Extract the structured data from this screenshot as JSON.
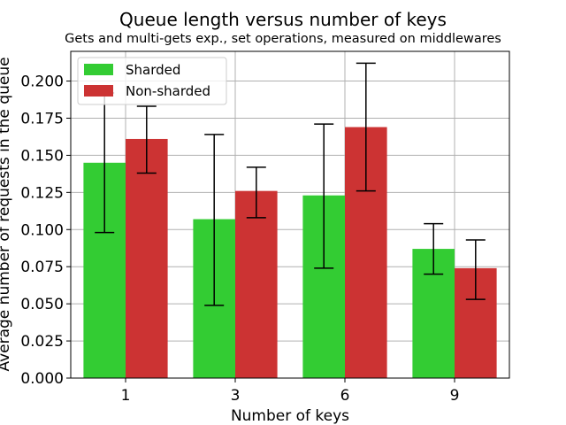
{
  "chart_data": {
    "type": "bar",
    "title": "Queue length versus number of keys",
    "subtitle": "Gets and multi-gets exp., set operations, measured on middlewares",
    "xlabel": "Number of keys",
    "ylabel": "Average number of requests in the queue",
    "categories": [
      "1",
      "3",
      "6",
      "9"
    ],
    "ylim": [
      0,
      0.22
    ],
    "yticks": [
      "0.000",
      "0.025",
      "0.050",
      "0.075",
      "0.100",
      "0.125",
      "0.150",
      "0.175",
      "0.200"
    ],
    "grid": true,
    "legend_position": "top-left",
    "series": [
      {
        "name": "Sharded",
        "color": "#33cc33",
        "values": [
          0.145,
          0.107,
          0.123,
          0.087
        ],
        "err_low": [
          0.098,
          0.049,
          0.074,
          0.07
        ],
        "err_high": [
          0.192,
          0.164,
          0.171,
          0.104
        ]
      },
      {
        "name": "Non-sharded",
        "color": "#cc3333",
        "values": [
          0.161,
          0.126,
          0.169,
          0.074
        ],
        "err_low": [
          0.138,
          0.108,
          0.126,
          0.053
        ],
        "err_high": [
          0.183,
          0.142,
          0.212,
          0.093
        ]
      }
    ]
  }
}
